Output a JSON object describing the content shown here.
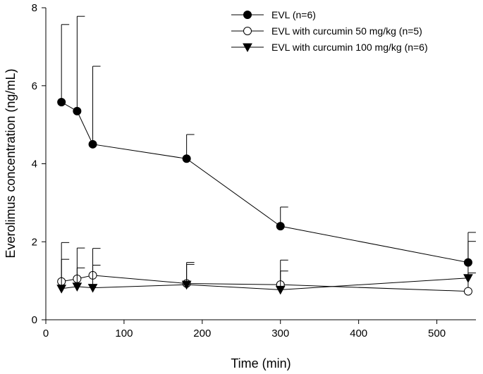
{
  "chart_data": {
    "type": "line",
    "title": "",
    "xlabel": "Time (min)",
    "ylabel": "Everolimus concentration (ng/mL)",
    "xlim": [
      0,
      550
    ],
    "ylim": [
      0,
      8
    ],
    "x_ticks": [
      0,
      100,
      200,
      300,
      400,
      500
    ],
    "y_ticks": [
      0,
      2,
      4,
      6,
      8
    ],
    "grid": false,
    "legend_position": "top-right",
    "x": [
      20,
      40,
      60,
      180,
      300,
      540
    ],
    "series": [
      {
        "name": "EVL (n=6)",
        "marker": "filled-circle",
        "values": [
          5.58,
          5.35,
          4.5,
          4.13,
          2.4,
          1.47
        ],
        "error_upper": [
          7.57,
          7.78,
          6.5,
          4.75,
          2.89,
          2.24
        ]
      },
      {
        "name": "EVL with curcumin 50 mg/kg (n=5)",
        "marker": "open-circle",
        "values": [
          0.98,
          1.05,
          1.14,
          0.93,
          0.9,
          0.73
        ],
        "error_upper": [
          1.98,
          1.84,
          1.83,
          1.47,
          1.53,
          1.2
        ]
      },
      {
        "name": "EVL with curcumin 100 mg/kg (n=6)",
        "marker": "filled-triangle-down",
        "values": [
          0.8,
          0.85,
          0.82,
          0.9,
          0.77,
          1.07
        ],
        "error_upper": [
          1.55,
          1.33,
          1.4,
          1.42,
          1.25,
          2.01
        ]
      }
    ]
  }
}
